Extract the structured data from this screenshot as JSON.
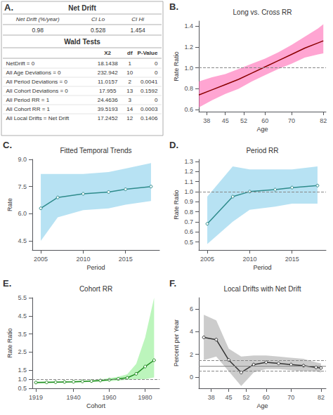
{
  "chart_data": [
    {
      "type": "table",
      "title": "Net Drift",
      "annotations": [
        "A."
      ],
      "columns": [
        "Net Drift (%/year)",
        "CI Lo",
        "CI Hi"
      ],
      "rows": [
        [
          0.98,
          0.528,
          1.454
        ]
      ]
    },
    {
      "type": "table",
      "title": "Wald Tests",
      "columns": [
        "X2",
        "df",
        "P-Value"
      ],
      "categories": [
        "NetDrift = 0",
        "All Age Deviations = 0",
        "All Period Deviations = 0",
        "All Cohort Deviations = 0",
        "All Period RR = 1",
        "All Cohort RR = 1",
        "All Local Drifts = Net Drift"
      ],
      "rows": [
        [
          18.1438,
          1,
          "0"
        ],
        [
          232.942,
          10,
          "0"
        ],
        [
          11.0157,
          2,
          "0.0041"
        ],
        [
          17.955,
          13,
          "0.1592"
        ],
        [
          24.4636,
          3,
          "0"
        ],
        [
          39.5193,
          14,
          "0.0003"
        ],
        [
          17.2452,
          12,
          "0.1406"
        ]
      ]
    },
    {
      "type": "line",
      "title": "Long vs. Cross RR",
      "annotations": [
        "B."
      ],
      "xlabel": "Age",
      "ylabel": "Rate Ratio",
      "grid": false,
      "x": [
        35,
        40,
        45,
        50,
        55,
        60,
        65,
        70,
        75,
        80,
        82
      ],
      "series": [
        {
          "type": "band",
          "color": "#FF69B4",
          "lower": [
            0.62,
            0.69,
            0.75,
            0.8,
            0.87,
            0.93,
            0.99,
            1.04,
            1.1,
            1.13,
            1.14
          ],
          "upper": [
            0.87,
            0.91,
            0.94,
            0.99,
            1.04,
            1.09,
            1.15,
            1.22,
            1.3,
            1.38,
            1.42
          ]
        },
        {
          "type": "line",
          "color": "#8B0000",
          "values": [
            0.74,
            0.79,
            0.84,
            0.89,
            0.95,
            1.01,
            1.07,
            1.13,
            1.19,
            1.24,
            1.26
          ]
        }
      ],
      "hlines": [
        {
          "value": 1.0,
          "line_style": "dashed"
        }
      ],
      "xlim": [
        35,
        83
      ],
      "ylim": [
        0.58,
        1.45
      ],
      "xticks": [
        38,
        45,
        52,
        60,
        70,
        82
      ],
      "yticks": [
        0.6,
        0.8,
        {
          "value": 1.0,
          "label": "1.0"
        },
        1.2,
        1.4
      ]
    },
    {
      "type": "line",
      "title": "Fitted Temporal Trends",
      "annotations": [
        "C."
      ],
      "xlabel": "Period",
      "ylabel": "Rate",
      "grid": false,
      "x": [
        2005,
        2007,
        2010,
        2013,
        2015,
        2018
      ],
      "series": [
        {
          "type": "band",
          "color": "#87CEEB",
          "lower": [
            4.5,
            5.8,
            6.2,
            6.3,
            6.5,
            6.7
          ],
          "upper": [
            8.2,
            8.2,
            8.2,
            8.3,
            8.5,
            8.8
          ]
        },
        {
          "type": "line",
          "color": "#2E8B8B",
          "marker": "o",
          "values": [
            6.3,
            6.9,
            7.1,
            7.2,
            7.35,
            7.5
          ]
        }
      ],
      "hlines": [],
      "xlim": [
        2004,
        2019
      ],
      "ylim": [
        4.0,
        9.0
      ],
      "xticks": [
        2005,
        2010,
        2015
      ],
      "yticks": [
        4.5,
        {
          "value": 6.0,
          "label": "6.0"
        },
        7.5,
        {
          "value": 9.0,
          "label": "9.0"
        }
      ]
    },
    {
      "type": "line",
      "title": "Period RR",
      "annotations": [
        "D."
      ],
      "xlabel": "Period",
      "ylabel": "Rate Ratio",
      "grid": false,
      "x": [
        2005,
        2008,
        2010,
        2013,
        2015,
        2018
      ],
      "series": [
        {
          "type": "band",
          "color": "#87CEEB",
          "lower": [
            0.48,
            0.7,
            0.82,
            0.85,
            0.88,
            0.88
          ],
          "upper": [
            0.95,
            1.25,
            1.22,
            1.22,
            1.22,
            1.25
          ]
        },
        {
          "type": "line",
          "color": "#2E8B8B",
          "marker": "o",
          "values": [
            0.68,
            0.95,
            1.0,
            1.02,
            1.04,
            1.06
          ]
        }
      ],
      "hlines": [
        {
          "value": 1.0,
          "line_style": "dashed"
        }
      ],
      "xlim": [
        2004,
        2019
      ],
      "ylim": [
        0.42,
        1.32
      ],
      "xticks": [
        2005,
        2010,
        2015
      ],
      "yticks": [
        0.5,
        0.6,
        0.7,
        0.8,
        0.9,
        {
          "value": 1.0,
          "label": "1.0"
        },
        1.1,
        1.2,
        1.3
      ]
    },
    {
      "type": "line",
      "title": "Cohort RR",
      "annotations": [
        "E."
      ],
      "xlabel": "Cohort",
      "ylabel": "Rate Ratio",
      "grid": false,
      "x": [
        1919,
        1925,
        1930,
        1935,
        1940,
        1945,
        1950,
        1955,
        1960,
        1965,
        1970,
        1975,
        1980,
        1985
      ],
      "series": [
        {
          "type": "band",
          "color": "#90EE90",
          "lower": [
            0.78,
            0.79,
            0.8,
            0.81,
            0.82,
            0.84,
            0.86,
            0.88,
            0.9,
            0.93,
            0.97,
            1.0,
            1.0,
            1.1
          ],
          "upper": [
            0.87,
            0.88,
            0.89,
            0.9,
            0.91,
            0.93,
            0.95,
            0.99,
            1.06,
            1.14,
            1.28,
            1.85,
            3.3,
            5.5
          ]
        },
        {
          "type": "line",
          "color": "#228B22",
          "marker": "o",
          "values": [
            0.82,
            0.83,
            0.84,
            0.85,
            0.86,
            0.88,
            0.9,
            0.93,
            0.97,
            1.02,
            1.08,
            1.3,
            1.7,
            2.05
          ]
        }
      ],
      "hlines": [
        {
          "value": 1.0,
          "line_style": "dashed"
        }
      ],
      "xlim": [
        1917,
        1988
      ],
      "ylim": [
        0.5,
        5.5
      ],
      "xticks": [
        1919,
        1940,
        1960,
        1980
      ],
      "yticks": [
        0.5,
        {
          "value": 1.0,
          "label": "1.0"
        },
        1.5,
        2.5,
        3.5,
        4.5,
        5.5
      ]
    },
    {
      "type": "line",
      "title": "Local Drifts with Net Drift",
      "annotations": [
        "F."
      ],
      "xlabel": "Age",
      "ylabel": "Percent per Year",
      "grid": false,
      "x": [
        35,
        40,
        45,
        50,
        55,
        60,
        65,
        70,
        75,
        80,
        82
      ],
      "series": [
        {
          "type": "band",
          "color": "#AAAAAA",
          "lower": [
            1.5,
            1.8,
            0.5,
            -0.8,
            0.4,
            0.7,
            0.7,
            0.6,
            0.5,
            0.5,
            0.4
          ],
          "upper": [
            5.5,
            5.0,
            2.5,
            1.8,
            1.9,
            1.9,
            1.8,
            1.7,
            1.6,
            1.3,
            1.2
          ]
        },
        {
          "type": "line",
          "color": "#333333",
          "marker": "o",
          "values": [
            3.5,
            3.3,
            1.5,
            0.4,
            1.1,
            1.3,
            1.2,
            1.1,
            1.0,
            0.85,
            0.8
          ]
        }
      ],
      "hlines": [
        {
          "value": 0.98,
          "line_style": "solid"
        },
        {
          "value": 1.45,
          "line_style": "dashed"
        },
        {
          "value": 0.53,
          "line_style": "dashed"
        }
      ],
      "xlim": [
        33,
        84
      ],
      "ylim": [
        -1.0,
        7.0
      ],
      "xticks": [
        38,
        45,
        52,
        60,
        70,
        82
      ],
      "yticks": [
        0,
        2,
        4,
        6
      ]
    }
  ]
}
